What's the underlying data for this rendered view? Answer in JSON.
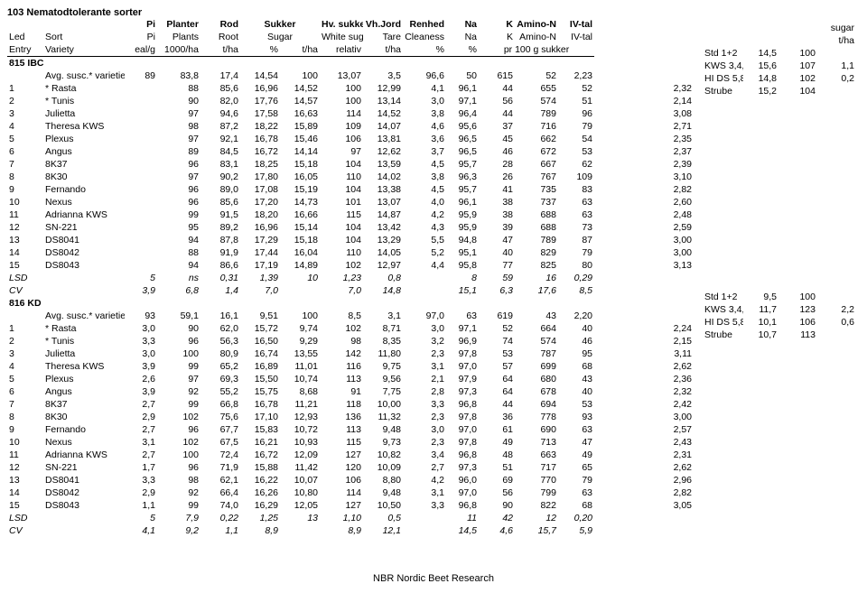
{
  "title": "103 Nematodtolerante sorter",
  "columns_l1": [
    "",
    "",
    "Pi",
    "Planter",
    "Rod",
    "Sukker",
    "",
    "Hv. sukker",
    "Vh.Jord",
    "Renhed",
    "Na",
    "K",
    "Amino-N",
    "IV-tal"
  ],
  "columns_l2": [
    "Led",
    "Sort",
    "Pi",
    "Plants",
    "Root",
    "Sugar",
    "",
    "White sugar",
    "Tare",
    "Cleaness",
    "Na",
    "K",
    "Amino-N",
    "IV-tal"
  ],
  "columns_l3": [
    "Entry",
    "Variety",
    "eal/g",
    "1000/ha",
    "t/ha",
    "%",
    "t/ha",
    "relativ",
    "t/ha",
    "%",
    "%",
    "",
    "pr 100 g sukker",
    "",
    ""
  ],
  "group1_label": "815 IBC",
  "group2_label": "816 KD",
  "avg_label": "Avg. susc.* varieties",
  "lsd_label": "LSD",
  "cv_label": "CV",
  "footer": "NBR Nordic Beet Research",
  "side1_header": [
    "sugar",
    "t/ha"
  ],
  "side1_rows": [
    [
      "Std 1+2",
      "14,5",
      "100",
      ""
    ],
    [
      "KWS 3,4,,7,8",
      "15,6",
      "107",
      "1,1"
    ],
    [
      "HI DS 5,8,10",
      "14,8",
      "102",
      "0,2"
    ],
    [
      "Strube",
      "15,2",
      "104",
      ""
    ]
  ],
  "side2_rows": [
    [
      "Std 1+2",
      "9,5",
      "100",
      ""
    ],
    [
      "KWS 3,4,,7,8",
      "11,7",
      "123",
      "2,2"
    ],
    [
      "HI DS 5,8,10",
      "10,1",
      "106",
      "0,6"
    ],
    [
      "Strube",
      "10,7",
      "113",
      ""
    ]
  ],
  "g1_avg": [
    "",
    "",
    "89",
    "83,8",
    "17,4",
    "14,54",
    "100",
    "13,07",
    "3,5",
    "96,6",
    "50",
    "615",
    "52",
    "2,23"
  ],
  "g1_rows": [
    [
      "1",
      "*  Rasta",
      "",
      "88",
      "85,6",
      "16,96",
      "14,52",
      "100",
      "12,99",
      "4,1",
      "96,1",
      "44",
      "655",
      "52",
      "2,32"
    ],
    [
      "2",
      "*  Tunis",
      "",
      "90",
      "82,0",
      "17,76",
      "14,57",
      "100",
      "13,14",
      "3,0",
      "97,1",
      "56",
      "574",
      "51",
      "2,14"
    ],
    [
      "3",
      "Julietta",
      "",
      "97",
      "94,6",
      "17,58",
      "16,63",
      "114",
      "14,52",
      "3,8",
      "96,4",
      "44",
      "789",
      "96",
      "3,08"
    ],
    [
      "4",
      "Theresa KWS",
      "",
      "98",
      "87,2",
      "18,22",
      "15,89",
      "109",
      "14,07",
      "4,6",
      "95,6",
      "37",
      "716",
      "79",
      "2,71"
    ],
    [
      "5",
      "Plexus",
      "",
      "97",
      "92,1",
      "16,78",
      "15,46",
      "106",
      "13,81",
      "3,6",
      "96,5",
      "45",
      "662",
      "54",
      "2,35"
    ],
    [
      "6",
      "Angus",
      "",
      "89",
      "84,5",
      "16,72",
      "14,14",
      "97",
      "12,62",
      "3,7",
      "96,5",
      "46",
      "672",
      "53",
      "2,37"
    ],
    [
      "7",
      "8K37",
      "",
      "96",
      "83,1",
      "18,25",
      "15,18",
      "104",
      "13,59",
      "4,5",
      "95,7",
      "28",
      "667",
      "62",
      "2,39"
    ],
    [
      "8",
      "8K30",
      "",
      "97",
      "90,2",
      "17,80",
      "16,05",
      "110",
      "14,02",
      "3,8",
      "96,3",
      "26",
      "767",
      "109",
      "3,10"
    ],
    [
      "9",
      "Fernando",
      "",
      "96",
      "89,0",
      "17,08",
      "15,19",
      "104",
      "13,38",
      "4,5",
      "95,7",
      "41",
      "735",
      "83",
      "2,82"
    ],
    [
      "10",
      "Nexus",
      "",
      "96",
      "85,6",
      "17,20",
      "14,73",
      "101",
      "13,07",
      "4,0",
      "96,1",
      "38",
      "737",
      "63",
      "2,60"
    ],
    [
      "11",
      "Adrianna KWS",
      "",
      "99",
      "91,5",
      "18,20",
      "16,66",
      "115",
      "14,87",
      "4,2",
      "95,9",
      "38",
      "688",
      "63",
      "2,48"
    ],
    [
      "12",
      "SN-221",
      "",
      "95",
      "89,2",
      "16,96",
      "15,14",
      "104",
      "13,42",
      "4,3",
      "95,9",
      "39",
      "688",
      "73",
      "2,59"
    ],
    [
      "13",
      "DS8041",
      "",
      "94",
      "87,8",
      "17,29",
      "15,18",
      "104",
      "13,29",
      "5,5",
      "94,8",
      "47",
      "789",
      "87",
      "3,00"
    ],
    [
      "14",
      "DS8042",
      "",
      "88",
      "91,9",
      "17,44",
      "16,04",
      "110",
      "14,05",
      "5,2",
      "95,1",
      "40",
      "829",
      "79",
      "3,00"
    ],
    [
      "15",
      "DS8043",
      "",
      "94",
      "86,6",
      "17,19",
      "14,89",
      "102",
      "12,97",
      "4,4",
      "95,8",
      "77",
      "825",
      "80",
      "3,13"
    ]
  ],
  "g1_lsd": [
    "",
    "",
    "5",
    "ns",
    "0,31",
    "1,39",
    "10",
    "1,23",
    "0,8",
    "",
    "8",
    "59",
    "16",
    "0,29"
  ],
  "g1_cv": [
    "",
    "",
    "3,9",
    "6,8",
    "1,4",
    "7,0",
    "",
    "7,0",
    "14,8",
    "",
    "15,1",
    "6,3",
    "17,6",
    "8,5"
  ],
  "g2_avg": [
    "",
    "",
    "93",
    "59,1",
    "16,1",
    "9,51",
    "100",
    "8,5",
    "3,1",
    "97,0",
    "63",
    "619",
    "43",
    "2,20"
  ],
  "g2_rows": [
    [
      "1",
      "*  Rasta",
      "3,0",
      "90",
      "62,0",
      "15,72",
      "9,74",
      "102",
      "8,71",
      "3,0",
      "97,1",
      "52",
      "664",
      "40",
      "2,24"
    ],
    [
      "2",
      "*  Tunis",
      "3,3",
      "96",
      "56,3",
      "16,50",
      "9,29",
      "98",
      "8,35",
      "3,2",
      "96,9",
      "74",
      "574",
      "46",
      "2,15"
    ],
    [
      "3",
      "Julietta",
      "3,0",
      "100",
      "80,9",
      "16,74",
      "13,55",
      "142",
      "11,80",
      "2,3",
      "97,8",
      "53",
      "787",
      "95",
      "3,11"
    ],
    [
      "4",
      "Theresa KWS",
      "3,9",
      "99",
      "65,2",
      "16,89",
      "11,01",
      "116",
      "9,75",
      "3,1",
      "97,0",
      "57",
      "699",
      "68",
      "2,62"
    ],
    [
      "5",
      "Plexus",
      "2,6",
      "97",
      "69,3",
      "15,50",
      "10,74",
      "113",
      "9,56",
      "2,1",
      "97,9",
      "64",
      "680",
      "43",
      "2,36"
    ],
    [
      "6",
      "Angus",
      "3,9",
      "92",
      "55,2",
      "15,75",
      "8,68",
      "91",
      "7,75",
      "2,8",
      "97,3",
      "64",
      "678",
      "40",
      "2,32"
    ],
    [
      "7",
      "8K37",
      "2,7",
      "99",
      "66,8",
      "16,78",
      "11,21",
      "118",
      "10,00",
      "3,3",
      "96,8",
      "44",
      "694",
      "53",
      "2,42"
    ],
    [
      "8",
      "8K30",
      "2,9",
      "102",
      "75,6",
      "17,10",
      "12,93",
      "136",
      "11,32",
      "2,3",
      "97,8",
      "36",
      "778",
      "93",
      "3,00"
    ],
    [
      "9",
      "Fernando",
      "2,7",
      "96",
      "67,7",
      "15,83",
      "10,72",
      "113",
      "9,48",
      "3,0",
      "97,0",
      "61",
      "690",
      "63",
      "2,57"
    ],
    [
      "10",
      "Nexus",
      "3,1",
      "102",
      "67,5",
      "16,21",
      "10,93",
      "115",
      "9,73",
      "2,3",
      "97,8",
      "49",
      "713",
      "47",
      "2,43"
    ],
    [
      "11",
      "Adrianna KWS",
      "2,7",
      "100",
      "72,4",
      "16,72",
      "12,09",
      "127",
      "10,82",
      "3,4",
      "96,8",
      "48",
      "663",
      "49",
      "2,31"
    ],
    [
      "12",
      "SN-221",
      "1,7",
      "96",
      "71,9",
      "15,88",
      "11,42",
      "120",
      "10,09",
      "2,7",
      "97,3",
      "51",
      "717",
      "65",
      "2,62"
    ],
    [
      "13",
      "DS8041",
      "3,3",
      "98",
      "62,1",
      "16,22",
      "10,07",
      "106",
      "8,80",
      "4,2",
      "96,0",
      "69",
      "770",
      "79",
      "2,96"
    ],
    [
      "14",
      "DS8042",
      "2,9",
      "92",
      "66,4",
      "16,26",
      "10,80",
      "114",
      "9,48",
      "3,1",
      "97,0",
      "56",
      "799",
      "63",
      "2,82"
    ],
    [
      "15",
      "DS8043",
      "1,1",
      "99",
      "74,0",
      "16,29",
      "12,05",
      "127",
      "10,50",
      "3,3",
      "96,8",
      "90",
      "822",
      "68",
      "3,05"
    ]
  ],
  "g2_lsd": [
    "",
    "",
    "5",
    "7,9",
    "0,22",
    "1,25",
    "13",
    "1,10",
    "0,5",
    "",
    "11",
    "42",
    "12",
    "0,20"
  ],
  "g2_cv": [
    "",
    "",
    "4,1",
    "9,2",
    "1,1",
    "8,9",
    "",
    "8,9",
    "12,1",
    "",
    "14,5",
    "4,6",
    "15,7",
    "5,9"
  ]
}
